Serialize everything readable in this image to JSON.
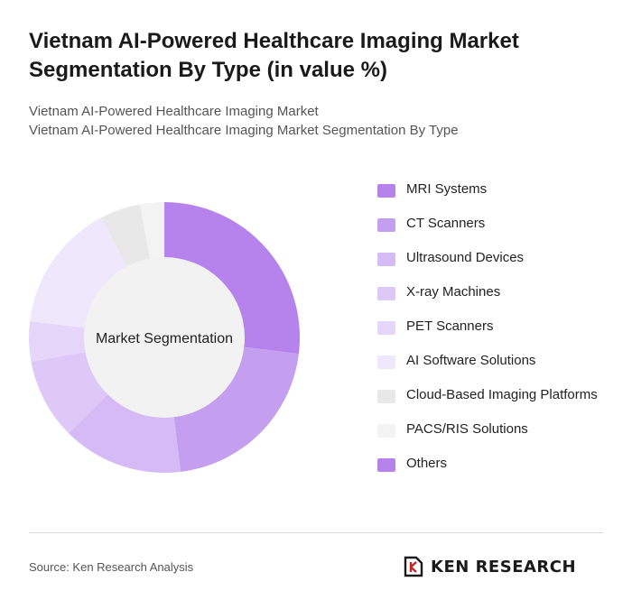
{
  "header": {
    "title": "Vietnam AI-Powered Healthcare Imaging Market Segmentation By Type (in value %)",
    "subtitle_line1": "Vietnam AI-Powered Healthcare Imaging Market",
    "subtitle_line2": "Vietnam AI-Powered Healthcare Imaging Market Segmentation By Type"
  },
  "chart_data": {
    "type": "pie",
    "variant": "donut",
    "center_label": "Market Segmentation",
    "legend_position": "right",
    "categories": [
      "MRI Systems",
      "CT Scanners",
      "Ultrasound Devices",
      "X-ray Machines",
      "PET Scanners",
      "AI Software Solutions",
      "Cloud-Based Imaging Platforms",
      "PACS/RIS Solutions",
      "Others"
    ],
    "values": [
      28,
      22,
      15,
      10,
      5,
      16,
      5,
      3,
      0
    ],
    "colors": [
      "#b583eb",
      "#c49ff0",
      "#d5baf5",
      "#dec8f7",
      "#e6d6f9",
      "#efe7fb",
      "#e8e8e8",
      "#f3f3f3",
      "#b583eb"
    ]
  },
  "footer": {
    "source": "Source: Ken Research Analysis",
    "brand": "KEN RESEARCH",
    "logo_icon": "ken-research-logo-icon"
  }
}
